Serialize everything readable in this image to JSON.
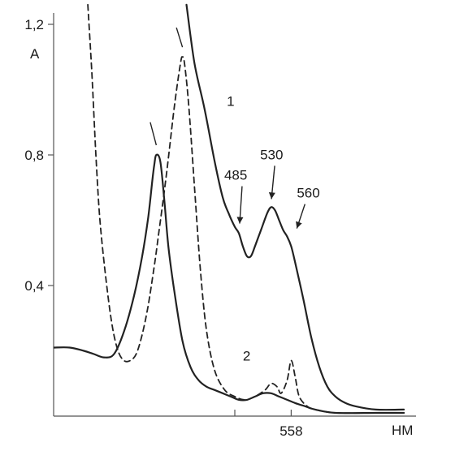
{
  "chart_data": {
    "type": "line",
    "title": "",
    "ylabel": "A",
    "xlabel": "НМ",
    "xlim": [
      440,
      620
    ],
    "ylim": [
      0,
      1.2
    ],
    "y_ticks": [
      {
        "value": 0.4,
        "label": "0,4"
      },
      {
        "value": 0.8,
        "label": "0,8"
      },
      {
        "value": 1.2,
        "label": "1,2"
      }
    ],
    "x_ticks": [
      {
        "value": 558,
        "label": "558"
      }
    ],
    "grid": false,
    "series": [
      {
        "name": "1",
        "style": "solid",
        "points": [
          [
            506,
            1.26
          ],
          [
            510,
            1.08
          ],
          [
            515,
            0.94
          ],
          [
            520,
            0.78
          ],
          [
            524,
            0.67
          ],
          [
            527,
            0.62
          ],
          [
            530,
            0.58
          ],
          [
            532,
            0.56
          ],
          [
            534,
            0.52
          ],
          [
            536,
            0.49
          ],
          [
            538,
            0.49
          ],
          [
            540,
            0.52
          ],
          [
            543,
            0.57
          ],
          [
            546,
            0.62
          ],
          [
            548,
            0.64
          ],
          [
            550,
            0.63
          ],
          [
            552,
            0.6
          ],
          [
            554,
            0.57
          ],
          [
            556,
            0.55
          ],
          [
            558,
            0.52
          ],
          [
            560,
            0.47
          ],
          [
            564,
            0.36
          ],
          [
            568,
            0.24
          ],
          [
            572,
            0.15
          ],
          [
            576,
            0.09
          ],
          [
            580,
            0.06
          ],
          [
            585,
            0.04
          ],
          [
            590,
            0.03
          ],
          [
            600,
            0.02
          ],
          [
            614,
            0.02
          ]
        ]
      },
      {
        "name": "2",
        "style": "solid",
        "points": [
          [
            440,
            0.21
          ],
          [
            448,
            0.21
          ],
          [
            455,
            0.2
          ],
          [
            460,
            0.19
          ],
          [
            465,
            0.18
          ],
          [
            470,
            0.19
          ],
          [
            475,
            0.26
          ],
          [
            480,
            0.37
          ],
          [
            484,
            0.49
          ],
          [
            487,
            0.61
          ],
          [
            489,
            0.72
          ],
          [
            490,
            0.77
          ],
          [
            491,
            0.8
          ],
          [
            493,
            0.78
          ],
          [
            495,
            0.66
          ],
          [
            497,
            0.52
          ],
          [
            500,
            0.38
          ],
          [
            504,
            0.23
          ],
          [
            508,
            0.15
          ],
          [
            512,
            0.11
          ],
          [
            516,
            0.09
          ],
          [
            520,
            0.08
          ],
          [
            524,
            0.07
          ],
          [
            528,
            0.06
          ],
          [
            532,
            0.05
          ],
          [
            536,
            0.05
          ],
          [
            540,
            0.06
          ],
          [
            544,
            0.07
          ],
          [
            548,
            0.07
          ],
          [
            552,
            0.06
          ],
          [
            556,
            0.05
          ],
          [
            560,
            0.04
          ],
          [
            565,
            0.03
          ],
          [
            570,
            0.02
          ],
          [
            580,
            0.01
          ],
          [
            600,
            0.01
          ],
          [
            614,
            0.01
          ]
        ]
      },
      {
        "name": "",
        "style": "dashed",
        "points": [
          [
            457,
            1.26
          ],
          [
            459,
            1.05
          ],
          [
            461,
            0.8
          ],
          [
            463,
            0.6
          ],
          [
            466,
            0.42
          ],
          [
            469,
            0.28
          ],
          [
            472,
            0.2
          ],
          [
            475,
            0.17
          ],
          [
            478,
            0.17
          ],
          [
            481,
            0.19
          ],
          [
            484,
            0.25
          ],
          [
            487,
            0.34
          ],
          [
            490,
            0.46
          ],
          [
            492,
            0.55
          ],
          [
            495,
            0.69
          ],
          [
            497,
            0.79
          ],
          [
            500,
            0.95
          ],
          [
            503,
            1.08
          ],
          [
            504,
            1.1
          ],
          [
            505,
            1.08
          ],
          [
            507,
            0.96
          ],
          [
            510,
            0.7
          ],
          [
            513,
            0.44
          ],
          [
            516,
            0.26
          ],
          [
            520,
            0.14
          ],
          [
            525,
            0.08
          ],
          [
            530,
            0.06
          ],
          [
            535,
            0.05
          ],
          [
            540,
            0.06
          ],
          [
            545,
            0.08
          ],
          [
            548,
            0.1
          ],
          [
            551,
            0.09
          ],
          [
            553,
            0.07
          ],
          [
            556,
            0.11
          ],
          [
            558,
            0.17
          ],
          [
            560,
            0.12
          ],
          [
            562,
            0.06
          ],
          [
            566,
            0.03
          ],
          [
            570,
            0.02
          ],
          [
            580,
            0.01
          ],
          [
            600,
            0.01
          ],
          [
            610,
            0.01
          ]
        ]
      }
    ],
    "annotations": [
      {
        "text": "485",
        "x": 532,
        "y": 0.57
      },
      {
        "text": "530",
        "x": 549,
        "y": 0.65
      },
      {
        "text": "560",
        "x": 560,
        "y": 0.56
      },
      {
        "text": "1",
        "x": 526,
        "y": 0.95
      },
      {
        "text": "2",
        "x": 534,
        "y": 0.17
      }
    ]
  }
}
